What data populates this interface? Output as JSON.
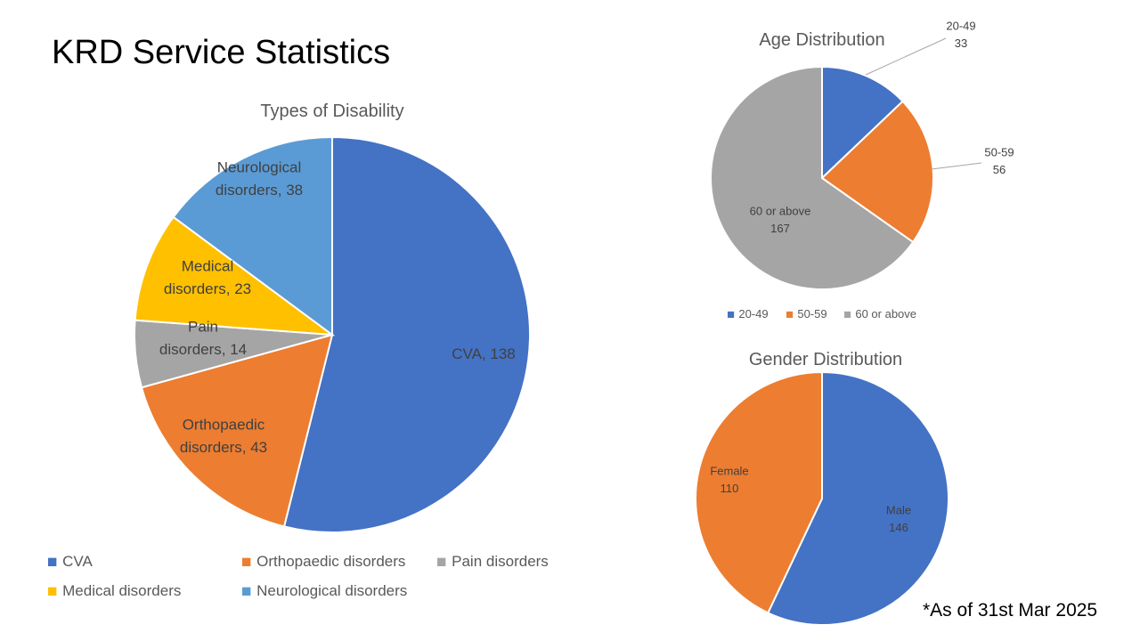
{
  "slide": {
    "title": "KRD Service Statistics",
    "footnote": "*As of 31st Mar 2025"
  },
  "chart_data": [
    {
      "type": "pie",
      "title": "Types of Disability",
      "categories": [
        "CVA",
        "Orthopaedic disorders",
        "Pain disorders",
        "Medical disorders",
        "Neurological disorders"
      ],
      "values": [
        138,
        43,
        14,
        23,
        38
      ],
      "colors": [
        "#4472C4",
        "#ED7D31",
        "#A5A5A5",
        "#FFC000",
        "#5B9BD5"
      ],
      "data_label_format": "category, value",
      "legend": "bottom"
    },
    {
      "type": "pie",
      "title": "Age Distribution",
      "categories": [
        "20-49",
        "50-59",
        "60 or above"
      ],
      "values": [
        33,
        56,
        167
      ],
      "colors": [
        "#4472C4",
        "#ED7D31",
        "#A5A5A5"
      ],
      "data_label_format": "category newline value",
      "legend": "bottom"
    },
    {
      "type": "pie",
      "title": "Gender Distribution",
      "categories": [
        "Male",
        "Female"
      ],
      "values": [
        146,
        110
      ],
      "colors": [
        "#4472C4",
        "#ED7D31"
      ],
      "data_label_format": "category newline value",
      "legend": "none"
    }
  ]
}
